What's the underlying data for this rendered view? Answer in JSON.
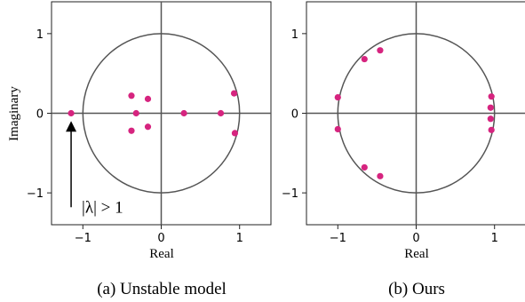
{
  "chart_data": [
    {
      "type": "scatter",
      "caption": "(a) Unstable model",
      "xlabel": "Real",
      "ylabel": "Imaginary",
      "xlim": [
        -1.4,
        1.4
      ],
      "ylim": [
        -1.4,
        1.4
      ],
      "xticks": [
        {
          "value": -1,
          "label": "−1"
        },
        {
          "value": 0,
          "label": "0"
        },
        {
          "value": 1,
          "label": "1"
        }
      ],
      "yticks": [
        {
          "value": 1,
          "label": "1"
        },
        {
          "value": 0,
          "label": "0"
        },
        {
          "value": -1,
          "label": "−1"
        }
      ],
      "unit_circle": true,
      "grid": false,
      "point_color": "#d6247f",
      "points": [
        {
          "x": -1.15,
          "y": 0.0
        },
        {
          "x": -0.38,
          "y": 0.22
        },
        {
          "x": -0.38,
          "y": -0.22
        },
        {
          "x": -0.32,
          "y": 0.0
        },
        {
          "x": -0.17,
          "y": 0.18
        },
        {
          "x": -0.17,
          "y": -0.17
        },
        {
          "x": 0.29,
          "y": 0.0
        },
        {
          "x": 0.76,
          "y": 0.0
        },
        {
          "x": 0.93,
          "y": 0.25
        },
        {
          "x": 0.94,
          "y": -0.25
        }
      ],
      "annotation": {
        "text": "|λ| > 1",
        "arrow_to": {
          "x": -1.15,
          "y": -0.12
        },
        "arrow_from": {
          "x": -1.15,
          "y": -1.18
        }
      }
    },
    {
      "type": "scatter",
      "caption": "(b) Ours",
      "xlabel": "Real",
      "ylabel": "",
      "xlim": [
        -1.4,
        1.4
      ],
      "ylim": [
        -1.4,
        1.4
      ],
      "xticks": [
        {
          "value": -1,
          "label": "−1"
        },
        {
          "value": 0,
          "label": "0"
        },
        {
          "value": 1,
          "label": "1"
        }
      ],
      "yticks": [
        {
          "value": 1,
          "label": "1"
        },
        {
          "value": 0,
          "label": "0"
        },
        {
          "value": -1,
          "label": "−1"
        }
      ],
      "unit_circle": true,
      "grid": false,
      "point_color": "#d6247f",
      "points": [
        {
          "x": -1.0,
          "y": 0.2
        },
        {
          "x": -1.0,
          "y": -0.2
        },
        {
          "x": -0.66,
          "y": 0.68
        },
        {
          "x": -0.66,
          "y": -0.68
        },
        {
          "x": -0.46,
          "y": 0.79
        },
        {
          "x": -0.46,
          "y": -0.79
        },
        {
          "x": 0.96,
          "y": 0.21
        },
        {
          "x": 0.95,
          "y": 0.07
        },
        {
          "x": 0.95,
          "y": -0.07
        },
        {
          "x": 0.96,
          "y": -0.21
        }
      ]
    }
  ]
}
